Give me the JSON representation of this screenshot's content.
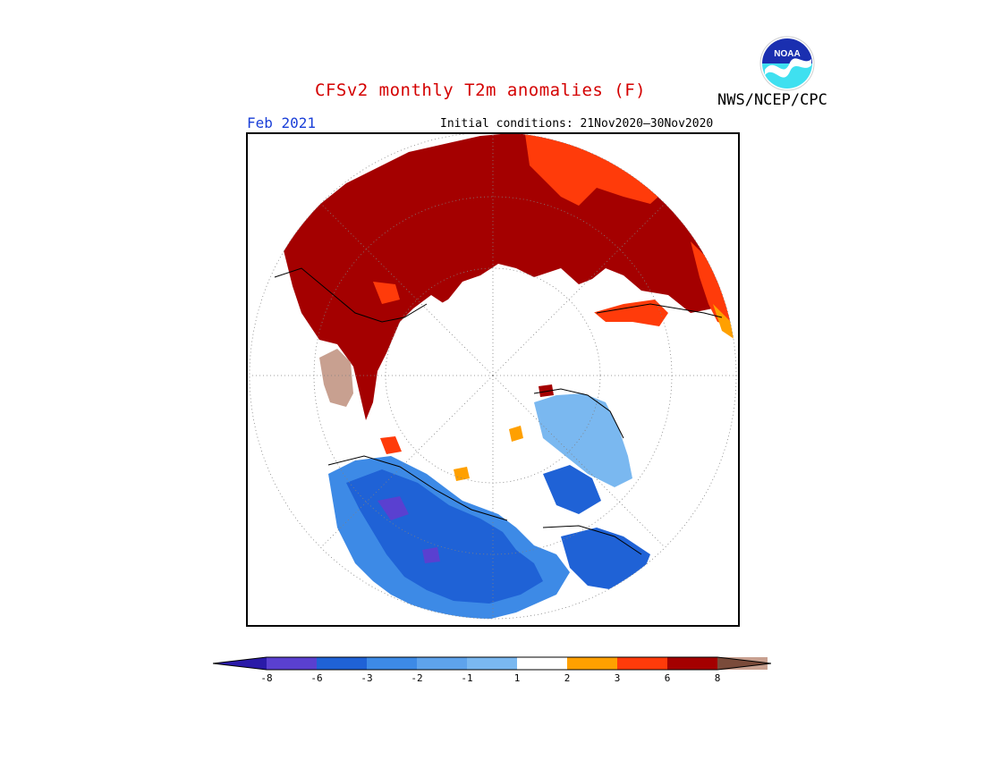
{
  "header": {
    "title": "CFSv2 monthly T2m anomalies (F)",
    "credit": "NWS/NCEP/CPC",
    "month": "Feb 2021",
    "initial_conditions": "Initial conditions: 21Nov2020—30Nov2020"
  },
  "logo": {
    "text": "NOAA",
    "icon": "noaa-logo-icon"
  },
  "map": {
    "projection": "polar stereographic, north pole",
    "variable": "T2m anomaly",
    "units": "F"
  },
  "colorbar": {
    "labels": [
      "-8",
      "-6",
      "-3",
      "-2",
      "-1",
      "1",
      "2",
      "3",
      "6",
      "8"
    ],
    "colors": [
      "#2a1aa8",
      "#5a40d0",
      "#1f62d6",
      "#3d8ae6",
      "#7ab8f0",
      "#ffffff",
      "#ffa000",
      "#ff3b0a",
      "#a40000",
      "#c8a090",
      "#7a4b3a"
    ]
  },
  "colors": {
    "title": "#d40000",
    "month": "#1a3fd8",
    "strong_warm": "#a40000",
    "warm": "#ff3b0a",
    "mild_warm": "#ffa000",
    "cool": "#3d8ae6",
    "cold": "#1f62d6",
    "very_cold": "#5a40d0"
  }
}
